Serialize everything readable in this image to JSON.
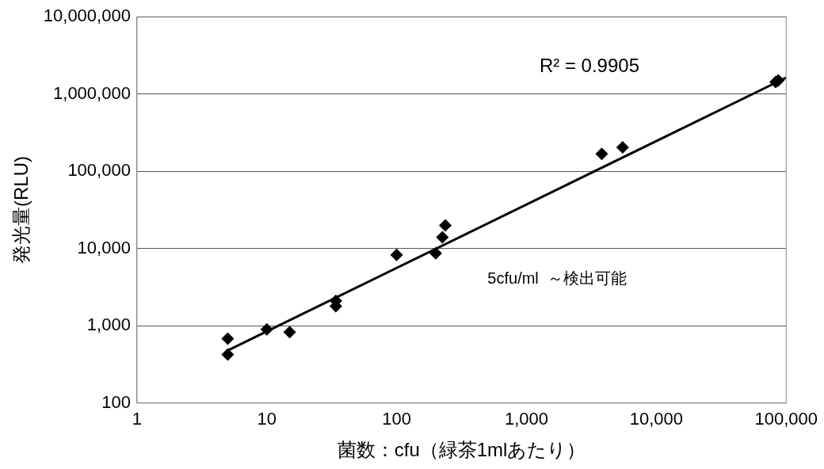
{
  "chart_data": {
    "type": "scatter",
    "xlabel": "菌数：cfu（緑茶1mlあたり）",
    "ylabel": "発光量(RLU)",
    "log": "xy",
    "grid": "y",
    "legend": false,
    "xlim": [
      1,
      100000
    ],
    "xticks": [
      1,
      10,
      100,
      {
        "value": 1000,
        "label": "1,000"
      },
      {
        "value": 10000,
        "label": "10,000"
      },
      {
        "value": 100000,
        "label": "100,000"
      }
    ],
    "ylim": [
      100,
      10000000
    ],
    "yticks": [
      100,
      {
        "value": 1000,
        "label": "1,000"
      },
      {
        "value": 10000,
        "label": "10,000"
      },
      {
        "value": 100000,
        "label": "100,000"
      },
      {
        "value": 1000000,
        "label": "1,000,000"
      },
      {
        "value": 10000000,
        "label": "10,000,000"
      }
    ],
    "annotations": [
      "R² = 0.9905",
      "5cfu/ml  ～検出可能"
    ],
    "series": [
      {
        "color": "#000000",
        "marker": "diamond",
        "x": [
          5,
          5,
          10,
          15,
          34,
          34,
          100,
          200,
          225,
          237,
          3800,
          5500,
          83000,
          87000
        ],
        "values": [
          680,
          425,
          900,
          830,
          2100,
          1800,
          8300,
          8700,
          14000,
          20000,
          168000,
          204000,
          1430000,
          1500000
        ]
      },
      {
        "type": "line",
        "color": "#000000",
        "marker": "none",
        "x": [
          5,
          100000
        ],
        "values": [
          480,
          1630000
        ]
      }
    ]
  }
}
